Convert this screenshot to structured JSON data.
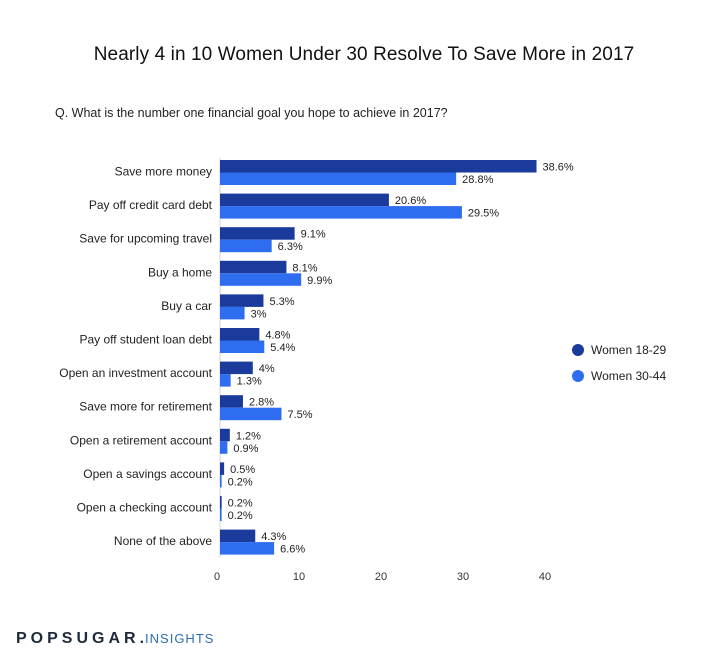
{
  "title": "Nearly 4 in 10 Women Under 30 Resolve To Save More in 2017",
  "subtitle": "Q. What is the number one financial goal you hope to achieve in 2017?",
  "brand": {
    "name": "POPSUGAR",
    "dot": ".",
    "suffix": "INSIGHTS"
  },
  "colors": {
    "series1": "#1a3a9c",
    "series2": "#2f6df0"
  },
  "chart_data": {
    "type": "bar",
    "orientation": "horizontal",
    "title": "Nearly 4 in 10 Women Under 30 Resolve To Save More in 2017",
    "subtitle": "Q. What is the number one financial goal you hope to achieve in 2017?",
    "categories": [
      "Save more money",
      "Pay off credit card debt",
      "Save for upcoming travel",
      "Buy a home",
      "Buy a car",
      "Pay off student loan debt",
      "Open an investment account",
      "Save more for retirement",
      "Open a retirement account",
      "Open a savings account",
      "Open a checking account",
      "None of the above"
    ],
    "series": [
      {
        "name": "Women 18-29",
        "values": [
          38.6,
          20.6,
          9.1,
          8.1,
          5.3,
          4.8,
          4,
          2.8,
          1.2,
          0.5,
          0.2,
          4.3
        ],
        "labels": [
          "38.6%",
          "20.6%",
          "9.1%",
          "8.1%",
          "5.3%",
          "4.8%",
          "4%",
          "2.8%",
          "1.2%",
          "0.5%",
          "0.2%",
          "4.3%"
        ]
      },
      {
        "name": "Women 30-44",
        "values": [
          28.8,
          29.5,
          6.3,
          9.9,
          3,
          5.4,
          1.3,
          7.5,
          0.9,
          0.2,
          0.2,
          6.6
        ],
        "labels": [
          "28.8%",
          "29.5%",
          "6.3%",
          "9.9%",
          "3%",
          "5.4%",
          "1.3%",
          "7.5%",
          "0.9%",
          "0.2%",
          "0.2%",
          "6.6%"
        ]
      }
    ],
    "xlim": [
      0,
      40
    ],
    "xticks": [
      "0",
      "10",
      "20",
      "30",
      "40"
    ],
    "grid": false,
    "legend": "right"
  }
}
